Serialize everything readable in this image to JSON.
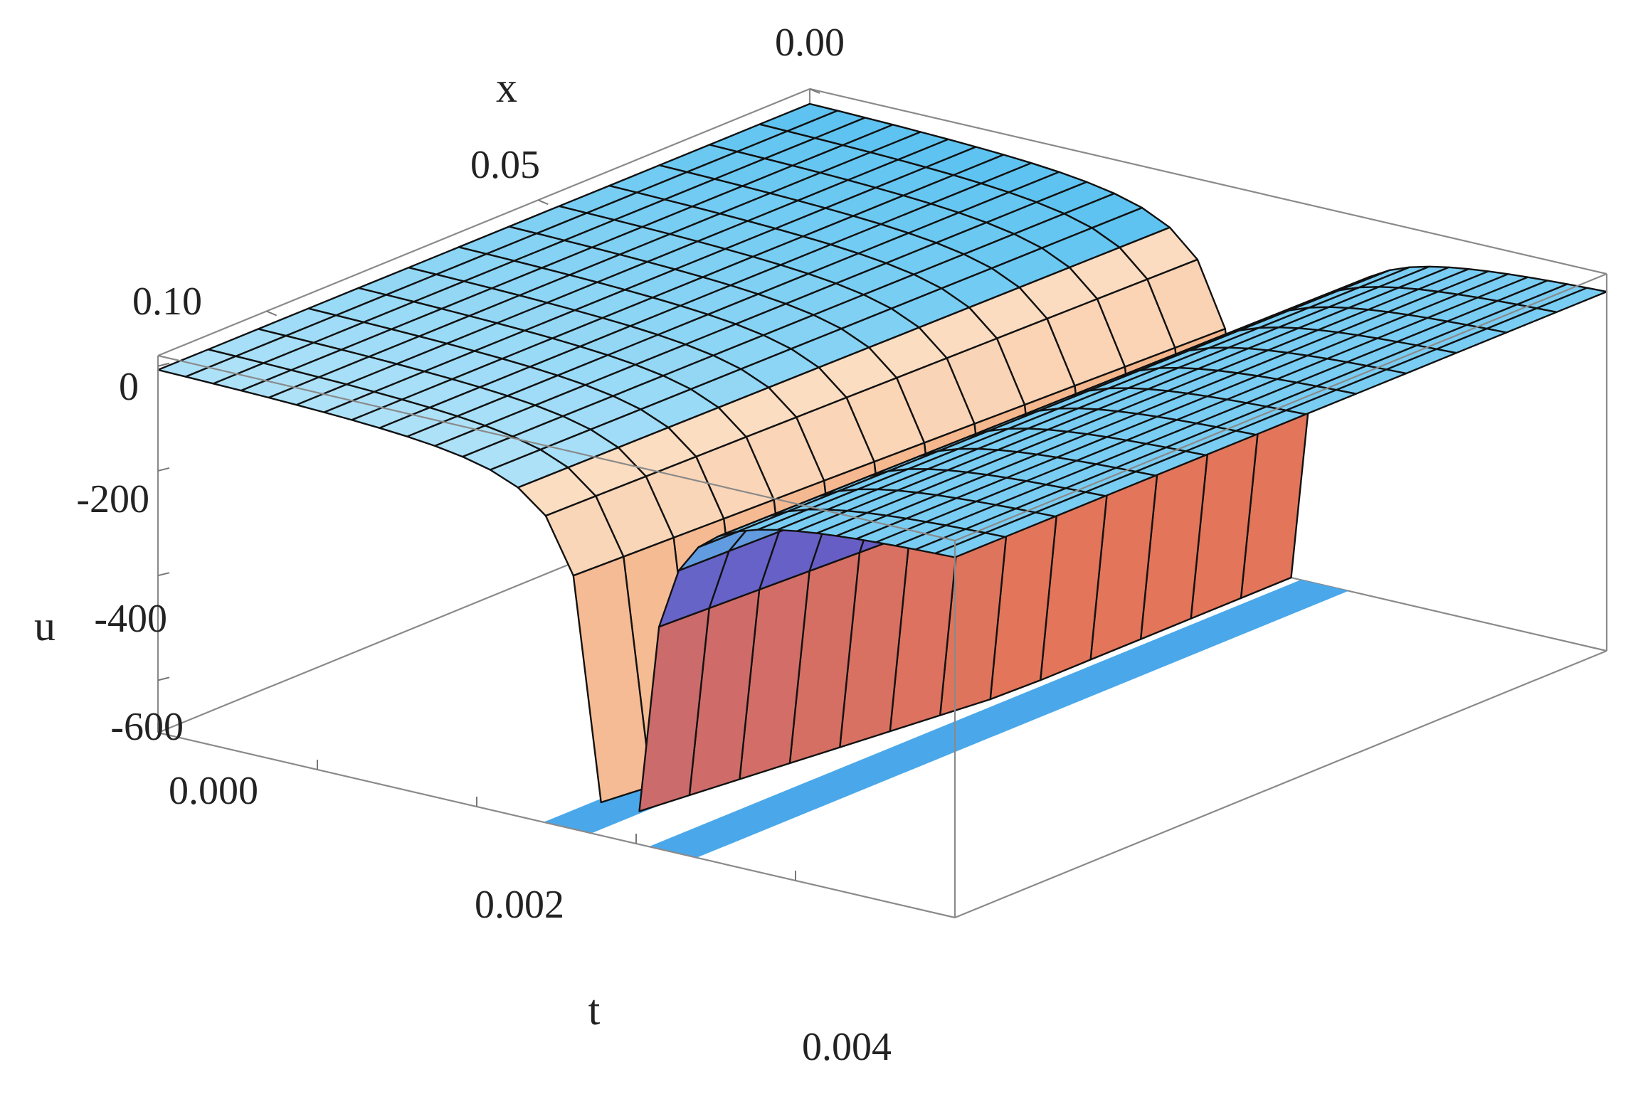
{
  "chart_data": {
    "type": "surface3d",
    "title": "",
    "axes": {
      "t": {
        "label": "t",
        "range": [
          0,
          0.005
        ],
        "ticks": [
          "0.000",
          "0.002",
          "0.004"
        ],
        "tick_values": [
          0,
          0.002,
          0.004
        ]
      },
      "x": {
        "label": "x",
        "range": [
          0,
          0.12
        ],
        "ticks": [
          "0.00",
          "0.05",
          "0.10"
        ],
        "tick_values": [
          0,
          0.05,
          0.1
        ]
      },
      "u": {
        "label": "u",
        "range": [
          -700,
          20
        ],
        "ticks": [
          "0",
          "-200",
          "-400",
          "-600"
        ],
        "tick_values": [
          0,
          -200,
          -400,
          -600
        ]
      }
    },
    "surface": {
      "description_model": "u(t,x) = -A * exp(-x/L) / |t - t0| style singular well around t0",
      "t0": 0.0029,
      "plateau_value": 0,
      "min_value": -700,
      "mesh_t_lines": 16,
      "mesh_x_lines": 13
    },
    "grid": false
  },
  "colors": {
    "left_lobe_light": "#fde7cf",
    "left_lobe_dark": "#f4b48a",
    "plateau": "#5ec3f0",
    "plateau_light": "#c9ecfb",
    "right_wall": "#6a3fb8",
    "right_deep": "#ef7b50",
    "floor_strip": "#4aa8ea"
  }
}
